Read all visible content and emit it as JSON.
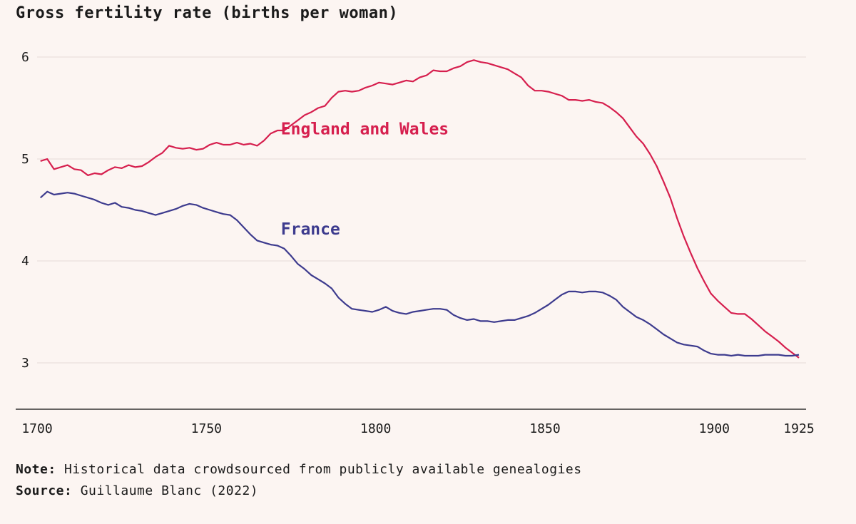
{
  "title": "Gross fertility rate (births per woman)",
  "note_label": "Note:",
  "note_text": "Historical data crowdsourced from publicly available genealogies",
  "source_label": "Source:",
  "source_text": "Guillaume Blanc (2022)",
  "colors": {
    "background": "#fcf5f2",
    "england": "#d61f4e",
    "france": "#3d3b8e",
    "grid": "#e6dcd8",
    "axis": "#333333"
  },
  "chart_data": {
    "type": "line",
    "title": "Gross fertility rate (births per woman)",
    "xlabel": "",
    "ylabel": "",
    "xlim": [
      1700,
      1925
    ],
    "ylim": [
      2.55,
      6.25
    ],
    "x_ticks": [
      1700,
      1750,
      1800,
      1850,
      1900,
      1925
    ],
    "y_ticks": [
      3,
      4,
      5,
      6
    ],
    "grid": "horizontal",
    "series": [
      {
        "name": "England and Wales",
        "color": "#d61f4e",
        "x": [
          1701,
          1703,
          1705,
          1707,
          1709,
          1711,
          1713,
          1715,
          1717,
          1719,
          1721,
          1723,
          1725,
          1727,
          1729,
          1731,
          1733,
          1735,
          1737,
          1739,
          1741,
          1743,
          1745,
          1747,
          1749,
          1751,
          1753,
          1755,
          1757,
          1759,
          1761,
          1763,
          1765,
          1767,
          1769,
          1771,
          1773,
          1775,
          1777,
          1779,
          1781,
          1783,
          1785,
          1787,
          1789,
          1791,
          1793,
          1795,
          1797,
          1799,
          1801,
          1803,
          1805,
          1807,
          1809,
          1811,
          1813,
          1815,
          1817,
          1819,
          1821,
          1823,
          1825,
          1827,
          1829,
          1831,
          1833,
          1835,
          1837,
          1839,
          1841,
          1843,
          1845,
          1847,
          1849,
          1851,
          1853,
          1855,
          1857,
          1859,
          1861,
          1863,
          1865,
          1867,
          1869,
          1871,
          1873,
          1875,
          1877,
          1879,
          1881,
          1883,
          1885,
          1887,
          1889,
          1891,
          1893,
          1895,
          1897,
          1899,
          1901,
          1903,
          1905,
          1907,
          1909,
          1911,
          1913,
          1915,
          1917,
          1919,
          1921,
          1923,
          1925
        ],
        "values": [
          4.98,
          5.0,
          4.9,
          4.92,
          4.94,
          4.9,
          4.89,
          4.84,
          4.86,
          4.85,
          4.89,
          4.92,
          4.91,
          4.94,
          4.92,
          4.93,
          4.97,
          5.02,
          5.06,
          5.13,
          5.11,
          5.1,
          5.11,
          5.09,
          5.1,
          5.14,
          5.16,
          5.14,
          5.14,
          5.16,
          5.14,
          5.15,
          5.13,
          5.18,
          5.25,
          5.28,
          5.28,
          5.33,
          5.38,
          5.43,
          5.46,
          5.5,
          5.52,
          5.6,
          5.66,
          5.67,
          5.66,
          5.67,
          5.7,
          5.72,
          5.75,
          5.74,
          5.73,
          5.75,
          5.77,
          5.76,
          5.8,
          5.82,
          5.87,
          5.86,
          5.86,
          5.89,
          5.91,
          5.95,
          5.97,
          5.95,
          5.94,
          5.92,
          5.9,
          5.88,
          5.84,
          5.8,
          5.72,
          5.67,
          5.67,
          5.66,
          5.64,
          5.62,
          5.58,
          5.58,
          5.57,
          5.58,
          5.56,
          5.55,
          5.51,
          5.46,
          5.4,
          5.31,
          5.22,
          5.15,
          5.05,
          4.93,
          4.78,
          4.62,
          4.42,
          4.24,
          4.08,
          3.93,
          3.8,
          3.68,
          3.61,
          3.55,
          3.49,
          3.48,
          3.48,
          3.43,
          3.37,
          3.31,
          3.26,
          3.21,
          3.15,
          3.1,
          3.05
        ]
      },
      {
        "name": "France",
        "color": "#3d3b8e",
        "x": [
          1701,
          1703,
          1705,
          1707,
          1709,
          1711,
          1713,
          1715,
          1717,
          1719,
          1721,
          1723,
          1725,
          1727,
          1729,
          1731,
          1733,
          1735,
          1737,
          1739,
          1741,
          1743,
          1745,
          1747,
          1749,
          1751,
          1753,
          1755,
          1757,
          1759,
          1761,
          1763,
          1765,
          1767,
          1769,
          1771,
          1773,
          1775,
          1777,
          1779,
          1781,
          1783,
          1785,
          1787,
          1789,
          1791,
          1793,
          1795,
          1797,
          1799,
          1801,
          1803,
          1805,
          1807,
          1809,
          1811,
          1813,
          1815,
          1817,
          1819,
          1821,
          1823,
          1825,
          1827,
          1829,
          1831,
          1833,
          1835,
          1837,
          1839,
          1841,
          1843,
          1845,
          1847,
          1849,
          1851,
          1853,
          1855,
          1857,
          1859,
          1861,
          1863,
          1865,
          1867,
          1869,
          1871,
          1873,
          1875,
          1877,
          1879,
          1881,
          1883,
          1885,
          1887,
          1889,
          1891,
          1893,
          1895,
          1897,
          1899,
          1901,
          1903,
          1905,
          1907,
          1909,
          1911,
          1913,
          1915,
          1917,
          1919,
          1921,
          1923,
          1925
        ],
        "values": [
          4.62,
          4.68,
          4.65,
          4.66,
          4.67,
          4.66,
          4.64,
          4.62,
          4.6,
          4.57,
          4.55,
          4.57,
          4.53,
          4.52,
          4.5,
          4.49,
          4.47,
          4.45,
          4.47,
          4.49,
          4.51,
          4.54,
          4.56,
          4.55,
          4.52,
          4.5,
          4.48,
          4.46,
          4.45,
          4.4,
          4.33,
          4.26,
          4.2,
          4.18,
          4.16,
          4.15,
          4.12,
          4.05,
          3.97,
          3.92,
          3.86,
          3.82,
          3.78,
          3.73,
          3.64,
          3.58,
          3.53,
          3.52,
          3.51,
          3.5,
          3.52,
          3.55,
          3.51,
          3.49,
          3.48,
          3.5,
          3.51,
          3.52,
          3.53,
          3.53,
          3.52,
          3.47,
          3.44,
          3.42,
          3.43,
          3.41,
          3.41,
          3.4,
          3.41,
          3.42,
          3.42,
          3.44,
          3.46,
          3.49,
          3.53,
          3.57,
          3.62,
          3.67,
          3.7,
          3.7,
          3.69,
          3.7,
          3.7,
          3.69,
          3.66,
          3.62,
          3.55,
          3.5,
          3.45,
          3.42,
          3.38,
          3.33,
          3.28,
          3.24,
          3.2,
          3.18,
          3.17,
          3.16,
          3.12,
          3.09,
          3.08,
          3.08,
          3.07,
          3.08,
          3.07,
          3.07,
          3.07,
          3.08,
          3.08,
          3.08,
          3.07,
          3.07,
          3.08
        ]
      }
    ],
    "annotations": [
      {
        "text": "England and Wales",
        "x": 1772,
        "y": 5.24,
        "color": "#d61f4e"
      },
      {
        "text": "France",
        "x": 1772,
        "y": 4.26,
        "color": "#3d3b8e"
      }
    ]
  }
}
